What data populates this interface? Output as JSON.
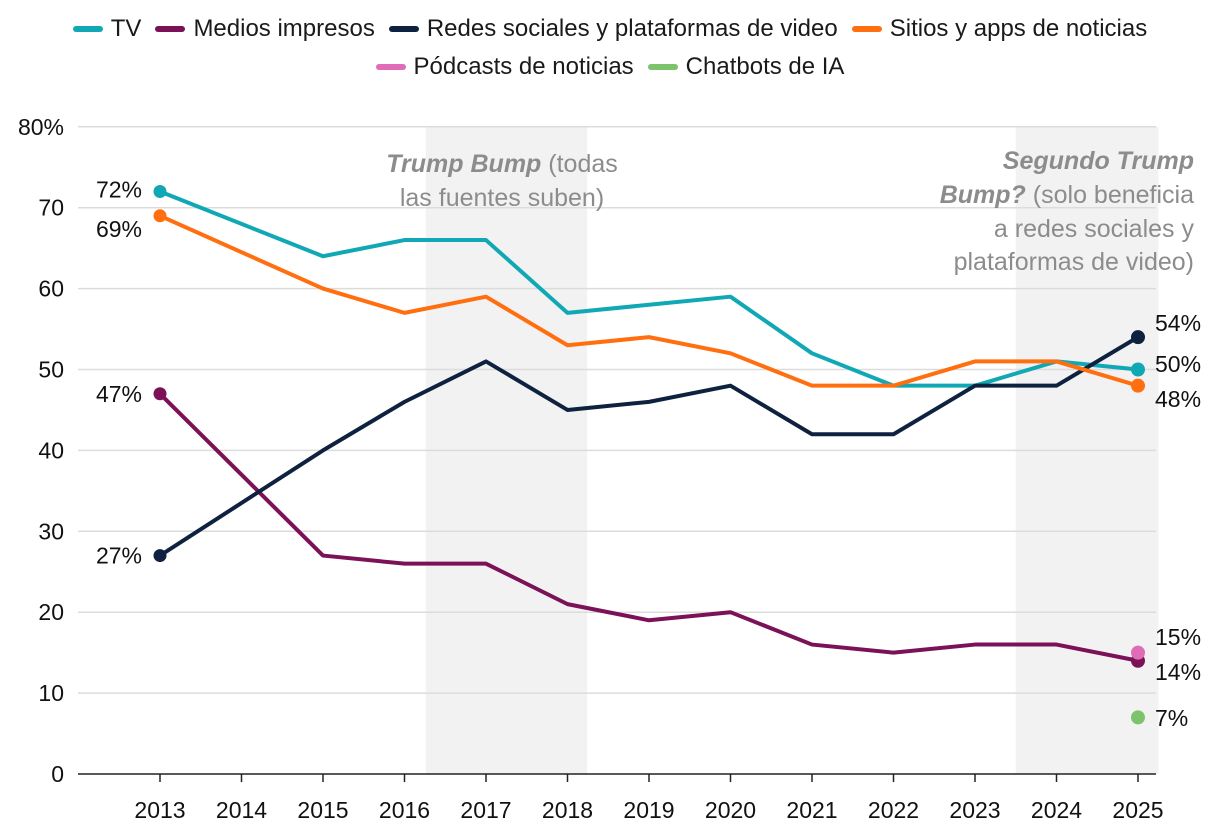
{
  "chart_data": {
    "type": "line",
    "x": [
      2013,
      2014,
      2015,
      2016,
      2017,
      2018,
      2019,
      2020,
      2021,
      2022,
      2023,
      2024,
      2025
    ],
    "yticks": [
      "0",
      "10",
      "20",
      "30",
      "40",
      "50",
      "60",
      "70",
      "80%"
    ],
    "ylim": [
      0,
      80
    ],
    "grid": true,
    "legend_position": "top-center",
    "series": [
      {
        "name": "TV",
        "color": "#11a8b5",
        "values": [
          72,
          null,
          64,
          66,
          66,
          57,
          58,
          59,
          52,
          48,
          48,
          51,
          50
        ],
        "start_label": "72%",
        "end_label": "50%"
      },
      {
        "name": "Medios impresos",
        "color": "#7b1257",
        "values": [
          47,
          null,
          27,
          26,
          26,
          21,
          19,
          20,
          16,
          15,
          16,
          16,
          14
        ],
        "start_label": "47%",
        "end_label": "14%"
      },
      {
        "name": "Redes sociales y plataformas de video",
        "color": "#0e2240",
        "values": [
          27,
          null,
          40,
          46,
          51,
          45,
          46,
          48,
          42,
          42,
          48,
          48,
          54
        ],
        "start_label": "27%",
        "end_label": "54%"
      },
      {
        "name": "Sitios y apps de noticias",
        "color": "#ff6f0f",
        "values": [
          69,
          null,
          60,
          57,
          59,
          53,
          54,
          52,
          48,
          48,
          51,
          51,
          48
        ],
        "start_label": "69%",
        "end_label": "48%"
      },
      {
        "name": "Pódcasts de noticias",
        "color": "#e06cb8",
        "values": [
          null,
          null,
          null,
          null,
          null,
          null,
          null,
          null,
          null,
          null,
          null,
          null,
          15
        ],
        "end_label": "15%"
      },
      {
        "name": "Chatbots de IA",
        "color": "#7dc36b",
        "values": [
          null,
          null,
          null,
          null,
          null,
          null,
          null,
          null,
          null,
          null,
          null,
          null,
          7
        ],
        "end_label": "7%"
      }
    ],
    "shaded_periods": [
      {
        "from": 2016.26,
        "to": 2018.24,
        "label_bold": "Trump Bump",
        "label_rest": " (todas",
        "label_line2": "las fuentes suben)"
      },
      {
        "from": 2023.5,
        "to": 2025.25,
        "label_lines": [
          {
            "bold": "Segundo Trump",
            "rest": ""
          },
          {
            "bold": "Bump?",
            "rest": " (solo beneficia"
          },
          {
            "bold": "",
            "rest": "a redes sociales y"
          },
          {
            "bold": "",
            "rest": "plataformas de video)"
          }
        ]
      }
    ]
  }
}
